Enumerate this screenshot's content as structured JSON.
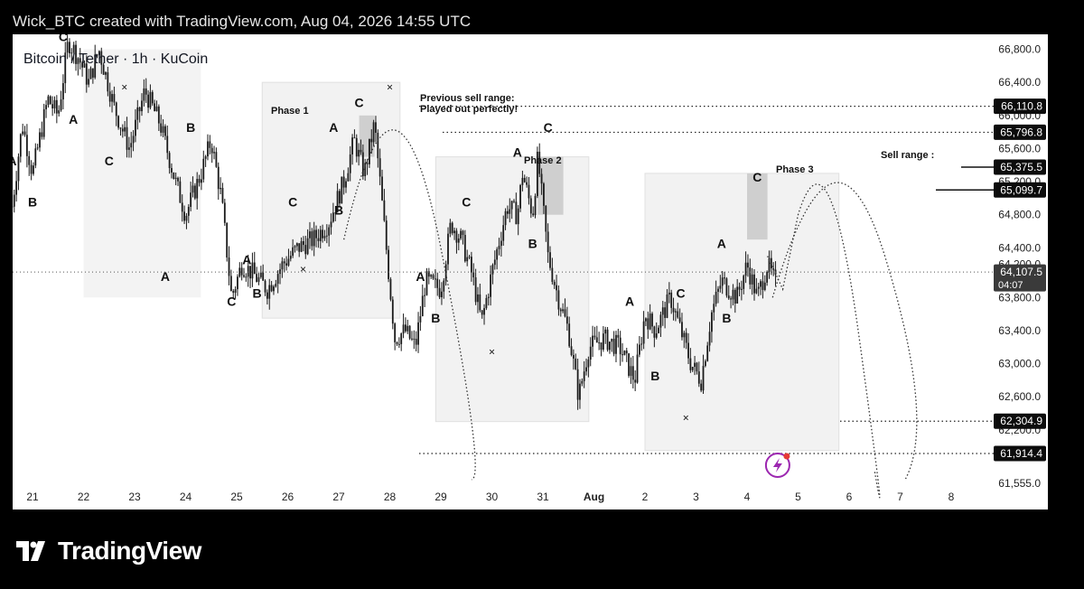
{
  "header": {
    "text": "Wick_BTC created with TradingView.com, Aug 04, 2026 14:55 UTC"
  },
  "footer": {
    "brand": "TradingView"
  },
  "chart_data": {
    "type": "candlestick",
    "symbol_title": "Bitcoin / Tether · 1h · KuCoin",
    "x_ticks": [
      "21",
      "22",
      "23",
      "24",
      "25",
      "26",
      "27",
      "28",
      "29",
      "30",
      "31",
      "Aug",
      "2",
      "3",
      "4",
      "5",
      "6",
      "7",
      "8"
    ],
    "y_ticks": [
      66800,
      66400,
      66000,
      65600,
      65200,
      64800,
      64400,
      64200,
      63800,
      63400,
      63000,
      62600,
      62200,
      61555
    ],
    "y_tick_labels": [
      "66,800.0",
      "66,400.0",
      "66,000.0",
      "65,600.0",
      "65,200.0",
      "64,800.0",
      "64,400.0",
      "64,200.0",
      "63,800.0",
      "63,400.0",
      "63,000.0",
      "62,600.0",
      "62,200.0",
      "61,555.0"
    ],
    "ylim": [
      61500,
      67000
    ],
    "price_path": [
      [
        20.6,
        64900
      ],
      [
        20.8,
        65900
      ],
      [
        21.0,
        65300
      ],
      [
        21.3,
        66200
      ],
      [
        21.5,
        66000
      ],
      [
        21.7,
        66900
      ],
      [
        21.9,
        66700
      ],
      [
        22.1,
        66400
      ],
      [
        22.3,
        66800
      ],
      [
        22.6,
        66100
      ],
      [
        22.9,
        65600
      ],
      [
        23.2,
        66300
      ],
      [
        23.5,
        65900
      ],
      [
        23.8,
        65200
      ],
      [
        24.0,
        64800
      ],
      [
        24.3,
        65300
      ],
      [
        24.5,
        65700
      ],
      [
        24.7,
        65000
      ],
      [
        24.9,
        63800
      ],
      [
        25.1,
        64200
      ],
      [
        25.3,
        64100
      ],
      [
        25.6,
        63900
      ],
      [
        25.9,
        64200
      ],
      [
        26.2,
        64400
      ],
      [
        26.5,
        64500
      ],
      [
        26.8,
        64700
      ],
      [
        27.1,
        65200
      ],
      [
        27.3,
        65700
      ],
      [
        27.5,
        65300
      ],
      [
        27.7,
        65900
      ],
      [
        27.9,
        64600
      ],
      [
        28.1,
        63300
      ],
      [
        28.3,
        63400
      ],
      [
        28.5,
        63200
      ],
      [
        28.7,
        64000
      ],
      [
        29.0,
        63900
      ],
      [
        29.2,
        64700
      ],
      [
        29.4,
        64500
      ],
      [
        29.6,
        64100
      ],
      [
        29.8,
        63500
      ],
      [
        30.0,
        64100
      ],
      [
        30.3,
        64900
      ],
      [
        30.5,
        64800
      ],
      [
        30.6,
        65300
      ],
      [
        30.8,
        64800
      ],
      [
        30.9,
        65500
      ],
      [
        31.1,
        64300
      ],
      [
        31.3,
        63800
      ],
      [
        31.5,
        63400
      ],
      [
        31.7,
        62600
      ],
      [
        31.9,
        63200
      ],
      [
        32.2,
        63300
      ],
      [
        32.5,
        63200
      ],
      [
        32.8,
        62800
      ],
      [
        33.0,
        63600
      ],
      [
        33.2,
        63400
      ],
      [
        33.5,
        63800
      ],
      [
        33.7,
        63400
      ],
      [
        33.9,
        63000
      ],
      [
        34.1,
        62800
      ],
      [
        34.3,
        63600
      ],
      [
        34.5,
        64000
      ],
      [
        34.8,
        63800
      ],
      [
        35.0,
        64200
      ],
      [
        35.2,
        63800
      ],
      [
        35.4,
        64200
      ],
      [
        35.6,
        63900
      ]
    ],
    "price_range": [
      61555,
      66900
    ],
    "series": [
      {
        "name": "BTC/USDT",
        "last_price": 64107.5,
        "countdown": "04:07"
      }
    ],
    "horizontal_levels": [
      {
        "price": 66110.8,
        "label": "66,110.8",
        "style": "dotted"
      },
      {
        "price": 65796.8,
        "label": "65,796.8",
        "style": "dotted"
      },
      {
        "price": 65375.5,
        "label": "65,375.5",
        "style": "solid"
      },
      {
        "price": 65099.7,
        "label": "65,099.7",
        "style": "solid"
      },
      {
        "price": 64107.5,
        "label": "64,107.5",
        "style": "current"
      },
      {
        "price": 62304.9,
        "label": "62,304.9",
        "style": "dotted"
      },
      {
        "price": 61914.4,
        "label": "61,914.4",
        "style": "dotted"
      }
    ],
    "price_labels_color": "#000000",
    "annotations": {
      "previous_sell_range_line1": "Previous sell range:",
      "previous_sell_range_line2": "Played out perfectly!",
      "sell_range": "Sell range :",
      "phase1": "Phase 1",
      "phase2": "Phase 2",
      "phase3": "Phase 3"
    },
    "wave_labels": [
      {
        "t": "C",
        "d": 21.6,
        "p": 66900
      },
      {
        "t": "A",
        "d": 20.6,
        "p": 65400
      },
      {
        "t": "B",
        "d": 21.0,
        "p": 64900
      },
      {
        "t": "A",
        "d": 21.8,
        "p": 65900
      },
      {
        "t": "C",
        "d": 22.5,
        "p": 65400
      },
      {
        "t": "A",
        "d": 23.6,
        "p": 64000
      },
      {
        "t": "B",
        "d": 24.1,
        "p": 65800
      },
      {
        "t": "A",
        "d": 25.2,
        "p": 64200
      },
      {
        "t": "C",
        "d": 24.9,
        "p": 63700
      },
      {
        "t": "B",
        "d": 25.4,
        "p": 63800
      },
      {
        "t": "C",
        "d": 26.1,
        "p": 64900
      },
      {
        "t": "B",
        "d": 27.0,
        "p": 64800
      },
      {
        "t": "A",
        "d": 26.9,
        "p": 65800
      },
      {
        "t": "C",
        "d": 27.4,
        "p": 66100
      },
      {
        "t": "A",
        "d": 28.6,
        "p": 64000
      },
      {
        "t": "B",
        "d": 28.9,
        "p": 63500
      },
      {
        "t": "C",
        "d": 29.5,
        "p": 64900
      },
      {
        "t": "A",
        "d": 30.5,
        "p": 65500
      },
      {
        "t": "B",
        "d": 30.8,
        "p": 64400
      },
      {
        "t": "C",
        "d": 31.1,
        "p": 65800
      },
      {
        "t": "A",
        "d": 32.7,
        "p": 63700
      },
      {
        "t": "B",
        "d": 33.2,
        "p": 62800
      },
      {
        "t": "C",
        "d": 33.7,
        "p": 63800
      },
      {
        "t": "A",
        "d": 34.5,
        "p": 64400
      },
      {
        "t": "B",
        "d": 34.6,
        "p": 63500
      },
      {
        "t": "C",
        "d": 35.2,
        "p": 65200
      }
    ],
    "cross_marks": [
      {
        "d": 22.8,
        "p": 66300
      },
      {
        "d": 26.3,
        "p": 64100
      },
      {
        "d": 28.0,
        "p": 66300
      },
      {
        "d": 30.0,
        "p": 63100
      },
      {
        "d": 33.8,
        "p": 62300
      }
    ],
    "phase_boxes": [
      {
        "label": "Phase 1",
        "d0": 25.5,
        "d1": 28.2,
        "p0": 63550,
        "p1": 66400
      },
      {
        "label": "Phase 2",
        "d0": 28.9,
        "d1": 31.9,
        "p0": 62300,
        "p1": 65500
      },
      {
        "label": "Phase 3",
        "d0": 33.0,
        "d1": 36.8,
        "p0": 61950,
        "p1": 65300
      }
    ],
    "legend_position": "none",
    "grid": false
  },
  "colors": {
    "panel_bg": "#ffffff",
    "frame_bg": "#000000",
    "text": "#131722",
    "accent": "#9c27b0"
  }
}
